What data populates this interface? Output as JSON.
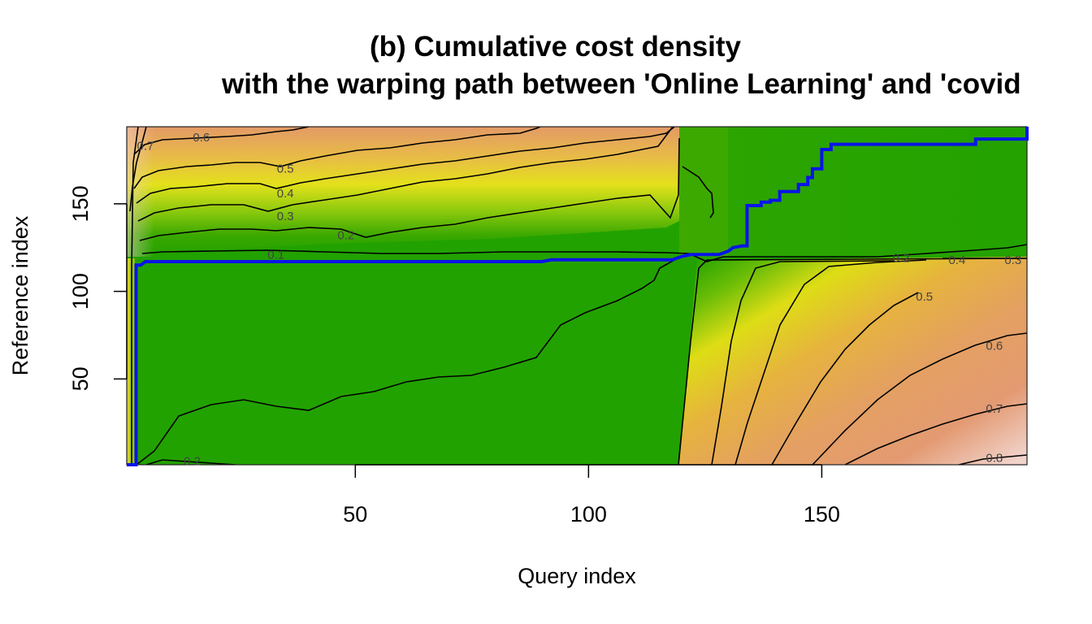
{
  "chart_data": {
    "type": "heatmap",
    "title_line1": "(b) Cumulative cost density",
    "title_line2": "with the warping path between 'Online Learning' and 'covid",
    "xlabel": "Query index",
    "ylabel": "Reference index",
    "xlim": [
      1,
      194
    ],
    "ylim": [
      1,
      194
    ],
    "x_ticks": [
      50,
      100,
      150
    ],
    "y_ticks": [
      50,
      100,
      150
    ],
    "colormap": "terrain",
    "colors": {
      "low": "#1fa300",
      "mid": "#e6e41a",
      "high": "#e8a06a",
      "top": "#f3d9d3",
      "path": "#0a14e8",
      "contour": "#000000",
      "contour_label": "#444444"
    },
    "contour_labels": [
      {
        "text": "0.7",
        "x": 5,
        "y": 183
      },
      {
        "text": "0.6",
        "x": 17,
        "y": 188
      },
      {
        "text": "0.5",
        "x": 35,
        "y": 170
      },
      {
        "text": "0.4",
        "x": 35,
        "y": 156
      },
      {
        "text": "0.3",
        "x": 35,
        "y": 143
      },
      {
        "text": "0.2",
        "x": 48,
        "y": 132
      },
      {
        "text": "0.1",
        "x": 33,
        "y": 121
      },
      {
        "text": "0.2",
        "x": 15,
        "y": 3
      },
      {
        "text": "0.2",
        "x": 167,
        "y": 119
      },
      {
        "text": "0.4",
        "x": 179,
        "y": 118
      },
      {
        "text": "0.3",
        "x": 191,
        "y": 118
      },
      {
        "text": "0.5",
        "x": 172,
        "y": 97
      },
      {
        "text": "0.6",
        "x": 187,
        "y": 69
      },
      {
        "text": "0.7",
        "x": 187,
        "y": 33
      },
      {
        "text": "0.8",
        "x": 187,
        "y": 5
      }
    ],
    "warping_path": {
      "x": [
        1,
        3,
        3,
        4,
        5,
        8,
        90,
        92,
        118,
        120,
        122,
        128,
        130,
        131,
        133,
        134,
        134,
        137,
        137,
        139,
        139,
        141,
        141,
        145,
        145,
        147,
        147,
        148,
        148,
        150,
        150,
        152,
        152,
        183,
        183,
        194,
        194
      ],
      "y": [
        1,
        1,
        115,
        115,
        117,
        117,
        117,
        118,
        118,
        120,
        121,
        121,
        123,
        125,
        126,
        126,
        149,
        149,
        151,
        151,
        152,
        152,
        157,
        157,
        161,
        161,
        165,
        165,
        170,
        170,
        181,
        181,
        184,
        184,
        187,
        187,
        194
      ]
    }
  }
}
